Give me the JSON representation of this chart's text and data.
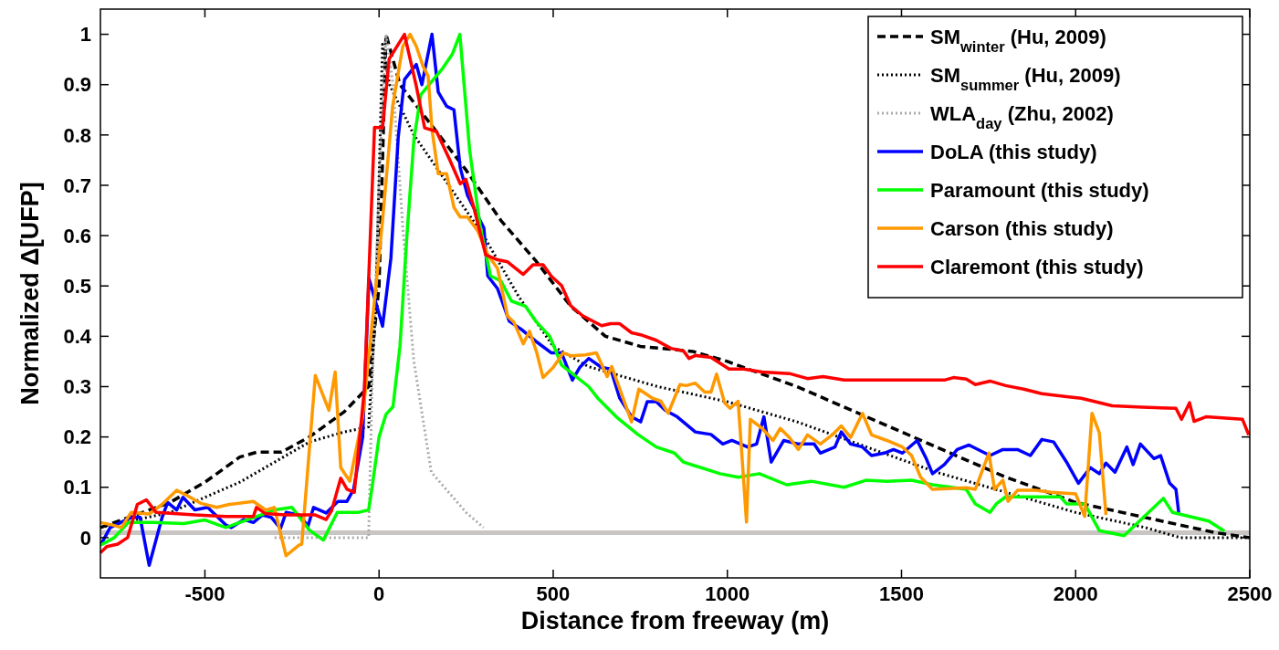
{
  "chart_data": {
    "type": "line",
    "xlabel": "Distance from freeway (m)",
    "ylabel": "Normalized Δ[UFP]",
    "xlim": [
      -800,
      2500
    ],
    "xticks": [
      -500,
      0,
      500,
      1000,
      1500,
      2000,
      2500
    ],
    "ylim": [
      -0.08,
      1.05
    ],
    "yticks": [
      0,
      0.1,
      0.2,
      0.3,
      0.4,
      0.5,
      0.6,
      0.7,
      0.8,
      0.9,
      1
    ],
    "grid": false,
    "legend": "top right",
    "marker": "none",
    "ref_lines": [
      {
        "axis": "y",
        "value": 0.01,
        "color": "#c8c5c2"
      }
    ],
    "series": [
      {
        "name": "SM$_{winter}$ (Hu, 2009)",
        "color": "#000000",
        "line_style": "dashed",
        "x": [
          -800,
          -600,
          -500,
          -400,
          -350,
          -280,
          -200,
          -100,
          -30,
          0,
          20,
          60,
          150,
          250,
          350,
          450,
          550,
          650,
          750,
          900,
          1000,
          1200,
          1400,
          1600,
          1800,
          2000,
          2200,
          2400,
          2500
        ],
        "values": [
          0.02,
          0.07,
          0.11,
          0.16,
          0.17,
          0.17,
          0.2,
          0.25,
          0.3,
          0.5,
          1.0,
          0.9,
          0.82,
          0.73,
          0.63,
          0.55,
          0.46,
          0.4,
          0.38,
          0.37,
          0.35,
          0.3,
          0.24,
          0.18,
          0.12,
          0.07,
          0.04,
          0.01,
          0.0
        ]
      },
      {
        "name": "SM$_{summer}$ (Hu, 2009)",
        "color": "#000000",
        "line_style": "dotted",
        "x": [
          -800,
          -600,
          -400,
          -300,
          -200,
          -100,
          -30,
          -10,
          10,
          30,
          100,
          200,
          300,
          400,
          500,
          600,
          800,
          1000,
          1200,
          1400,
          1600,
          1800,
          2000,
          2200,
          2300,
          2500
        ],
        "values": [
          0.02,
          0.05,
          0.11,
          0.15,
          0.19,
          0.21,
          0.22,
          0.45,
          0.98,
          0.9,
          0.8,
          0.7,
          0.6,
          0.48,
          0.38,
          0.34,
          0.3,
          0.27,
          0.23,
          0.18,
          0.13,
          0.09,
          0.05,
          0.02,
          0.0,
          0.0
        ]
      },
      {
        "name": "WLA$_{day}$ (Zhu, 2002)",
        "color": "#aaaaaa",
        "line_style": "dotted",
        "x": [
          -300,
          -30,
          -20,
          0,
          20,
          40,
          70,
          100,
          150,
          200,
          250,
          300
        ],
        "values": [
          0,
          0,
          0.3,
          0.7,
          1.0,
          0.9,
          0.6,
          0.35,
          0.13,
          0.09,
          0.05,
          0.02
        ]
      },
      {
        "name": "DoLA (this study)",
        "color": "#0000ff",
        "line_style": "solid",
        "x": [
          -798,
          -772,
          -712,
          -686,
          -660,
          -623,
          -607,
          -581,
          -563,
          -529,
          -492,
          -440,
          -424,
          -388,
          -361,
          -335,
          -309,
          -283,
          -267,
          -230,
          -204,
          -188,
          -152,
          -118,
          -92,
          -73,
          -47,
          -29,
          10,
          34,
          55,
          73,
          107,
          123,
          152,
          170,
          194,
          215,
          233,
          254,
          301,
          312,
          340,
          374,
          408,
          456,
          495,
          524,
          555,
          576,
          602,
          639,
          665,
          691,
          725,
          751,
          770,
          796,
          822,
          856,
          908,
          953,
          987,
          1013,
          1058,
          1084,
          1105,
          1126,
          1162,
          1204,
          1249,
          1267,
          1309,
          1327,
          1354,
          1388,
          1414,
          1451,
          1477,
          1503,
          1545,
          1571,
          1589,
          1623,
          1660,
          1694,
          1754,
          1791,
          1833,
          1870,
          1903,
          1937,
          1974,
          2008,
          2042,
          2068,
          2087,
          2113,
          2147,
          2165,
          2186,
          2225,
          2244,
          2270,
          2288,
          2296
        ],
        "values": [
          -0.013,
          0.02,
          0.04,
          0.04,
          -0.055,
          0.04,
          0.07,
          0.055,
          0.08,
          0.055,
          0.06,
          0.025,
          0.02,
          0.036,
          0.03,
          0.045,
          0.04,
          0.018,
          0.05,
          0.045,
          0.023,
          0.06,
          0.049,
          0.072,
          0.072,
          0.096,
          0.2,
          0.515,
          0.42,
          0.555,
          0.795,
          0.91,
          0.94,
          0.9,
          1.0,
          0.885,
          0.857,
          0.85,
          0.735,
          0.68,
          0.615,
          0.52,
          0.495,
          0.43,
          0.414,
          0.387,
          0.367,
          0.367,
          0.313,
          0.338,
          0.356,
          0.338,
          0.335,
          0.277,
          0.24,
          0.23,
          0.27,
          0.27,
          0.253,
          0.24,
          0.21,
          0.205,
          0.186,
          0.193,
          0.18,
          0.186,
          0.24,
          0.15,
          0.193,
          0.186,
          0.186,
          0.168,
          0.18,
          0.21,
          0.186,
          0.18,
          0.163,
          0.168,
          0.175,
          0.168,
          0.193,
          0.157,
          0.127,
          0.145,
          0.175,
          0.184,
          0.163,
          0.175,
          0.175,
          0.163,
          0.195,
          0.19,
          0.15,
          0.108,
          0.139,
          0.127,
          0.148,
          0.13,
          0.18,
          0.145,
          0.186,
          0.157,
          0.163,
          0.108,
          0.096,
          0.049
        ]
      },
      {
        "name": "Paramount (this study)",
        "color": "#00ff00",
        "line_style": "solid",
        "x": [
          -800,
          -760,
          -720,
          -650,
          -560,
          -500,
          -440,
          -380,
          -300,
          -250,
          -200,
          -160,
          -120,
          -60,
          -30,
          -20,
          0,
          20,
          40,
          60,
          80,
          100,
          120,
          150,
          180,
          210,
          232,
          260,
          290,
          320,
          350,
          380,
          420,
          450,
          490,
          524,
          602,
          628,
          681,
          743,
          796,
          848,
          874,
          979,
          1031,
          1092,
          1170,
          1241,
          1335,
          1398,
          1458,
          1529,
          1589,
          1686,
          1712,
          1754,
          1772,
          1799,
          1956,
          1974,
          2026,
          2068,
          2139,
          2252,
          2278,
          2382,
          2427
        ],
        "values": [
          -0.015,
          0.0,
          0.03,
          0.03,
          0.028,
          0.035,
          0.02,
          0.035,
          0.055,
          0.06,
          0.015,
          -0.005,
          0.05,
          0.05,
          0.055,
          0.1,
          0.2,
          0.245,
          0.26,
          0.38,
          0.6,
          0.79,
          0.88,
          0.905,
          0.93,
          0.96,
          1.0,
          0.77,
          0.62,
          0.52,
          0.51,
          0.47,
          0.46,
          0.43,
          0.4,
          0.343,
          0.3,
          0.277,
          0.24,
          0.205,
          0.18,
          0.168,
          0.15,
          0.127,
          0.12,
          0.127,
          0.105,
          0.112,
          0.1,
          0.114,
          0.112,
          0.114,
          0.105,
          0.096,
          0.067,
          0.05,
          0.067,
          0.081,
          0.081,
          0.067,
          0.067,
          0.014,
          0.004,
          0.078,
          0.05,
          0.033,
          0.013
        ]
      },
      {
        "name": "Carson (this study)",
        "color": "#ff9900",
        "line_style": "solid",
        "x": [
          -800,
          -765,
          -740,
          -712,
          -660,
          -623,
          -581,
          -555,
          -511,
          -466,
          -430,
          -361,
          -325,
          -301,
          -267,
          -230,
          -222,
          -183,
          -144,
          -126,
          -110,
          -84,
          -47,
          10,
          39,
          68,
          89,
          107,
          126,
          141,
          152,
          170,
          194,
          215,
          233,
          254,
          283,
          312,
          340,
          369,
          387,
          414,
          432,
          453,
          471,
          500,
          529,
          552,
          592,
          624,
          655,
          668,
          725,
          746,
          785,
          809,
          830,
          864,
          882,
          908,
          935,
          953,
          969,
          992,
          1008,
          1031,
          1055,
          1066,
          1100,
          1131,
          1152,
          1178,
          1204,
          1230,
          1267,
          1301,
          1327,
          1354,
          1388,
          1414,
          1458,
          1503,
          1529,
          1555,
          1589,
          1686,
          1712,
          1751,
          1767,
          1791,
          1806,
          1833,
          1885,
          1930,
          2000,
          2026,
          2047,
          2068,
          2087
        ],
        "values": [
          0.03,
          0.025,
          0.02,
          0.05,
          0.047,
          0.066,
          0.094,
          0.085,
          0.068,
          0.06,
          0.066,
          0.072,
          0.055,
          0.06,
          -0.036,
          -0.015,
          -0.013,
          0.322,
          0.253,
          0.329,
          0.139,
          0.112,
          0.24,
          0.63,
          0.857,
          0.976,
          1.0,
          0.976,
          0.937,
          0.917,
          0.81,
          0.723,
          0.723,
          0.656,
          0.637,
          0.637,
          0.61,
          0.562,
          0.535,
          0.44,
          0.428,
          0.385,
          0.41,
          0.367,
          0.318,
          0.338,
          0.367,
          0.361,
          0.363,
          0.367,
          0.32,
          0.34,
          0.23,
          0.295,
          0.277,
          0.271,
          0.247,
          0.304,
          0.302,
          0.307,
          0.289,
          0.289,
          0.325,
          0.268,
          0.257,
          0.271,
          0.031,
          0.235,
          0.217,
          0.193,
          0.217,
          0.199,
          0.175,
          0.204,
          0.186,
          0.204,
          0.222,
          0.199,
          0.247,
          0.204,
          0.193,
          0.18,
          0.163,
          0.12,
          0.096,
          0.099,
          0.096,
          0.168,
          0.096,
          0.114,
          0.072,
          0.094,
          0.094,
          0.09,
          0.087,
          0.042,
          0.247,
          0.208,
          0.045
        ]
      },
      {
        "name": "Claremont (this study)",
        "color": "#ff0000",
        "line_style": "solid",
        "x": [
          -800,
          -782,
          -750,
          -722,
          -694,
          -668,
          -640,
          -589,
          -529,
          -440,
          -361,
          -352,
          -327,
          -270,
          -183,
          -152,
          -136,
          -110,
          -92,
          -71,
          -42,
          -13,
          10,
          29,
          73,
          107,
          131,
          165,
          204,
          233,
          249,
          272,
          306,
          340,
          369,
          414,
          442,
          471,
          495,
          524,
          550,
          584,
          639,
          665,
          691,
          725,
          751,
          796,
          838,
          874,
          890,
          908,
          953,
          1005,
          1047,
          1100,
          1178,
          1230,
          1275,
          1335,
          1388,
          1537,
          1623,
          1649,
          1686,
          1712,
          1754,
          1799,
          1851,
          1903,
          1974,
          2016,
          2105,
          2191,
          2288,
          2304,
          2327,
          2340,
          2374,
          2479,
          2497
        ],
        "values": [
          -0.03,
          -0.018,
          -0.013,
          0.0,
          0.066,
          0.075,
          0.05,
          0.048,
          0.045,
          0.042,
          0.042,
          0.06,
          0.048,
          0.045,
          0.045,
          0.036,
          0.054,
          0.118,
          0.096,
          0.09,
          0.295,
          0.815,
          0.814,
          0.951,
          1.0,
          0.897,
          0.814,
          0.807,
          0.749,
          0.703,
          0.712,
          0.656,
          0.562,
          0.552,
          0.548,
          0.523,
          0.542,
          0.542,
          0.519,
          0.501,
          0.461,
          0.441,
          0.421,
          0.425,
          0.425,
          0.407,
          0.403,
          0.392,
          0.376,
          0.371,
          0.356,
          0.362,
          0.358,
          0.335,
          0.335,
          0.329,
          0.326,
          0.316,
          0.32,
          0.313,
          0.313,
          0.313,
          0.313,
          0.318,
          0.315,
          0.304,
          0.311,
          0.302,
          0.295,
          0.286,
          0.28,
          0.277,
          0.262,
          0.259,
          0.257,
          0.235,
          0.268,
          0.231,
          0.24,
          0.235,
          0.204
        ]
      }
    ]
  }
}
